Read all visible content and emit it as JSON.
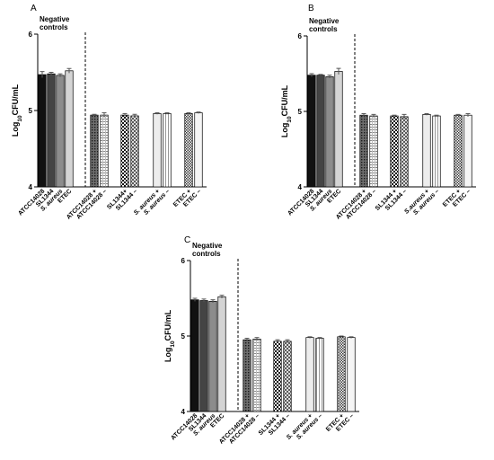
{
  "chart_data": [
    {
      "type": "bar",
      "panel": "A",
      "annotation": "Negative controls",
      "ylabel": "Log10CFU/mL",
      "ylim": [
        4,
        6
      ],
      "yticks": [
        "4",
        "5",
        "6"
      ],
      "grid": false,
      "categories": [
        "ATCC14028",
        "SL1344",
        "S. aureus",
        "ETEC",
        "ATCC14028 +",
        "ATCC14028 –",
        "SL1344+",
        "SL1344 –",
        "S. aureus +",
        "S. aureus –",
        "ETEC +",
        "ETEC –"
      ],
      "values": [
        5.47,
        5.48,
        5.46,
        5.52,
        4.94,
        4.94,
        4.94,
        4.93,
        4.96,
        4.96,
        4.96,
        4.97
      ],
      "errors": [
        0.04,
        0.02,
        0.02,
        0.03,
        0.01,
        0.03,
        0.02,
        0.02,
        0.01,
        0.01,
        0.01,
        0.01
      ]
    },
    {
      "type": "bar",
      "panel": "B",
      "annotation": "Negative controls",
      "ylabel": "Log10CFU/mL",
      "ylim": [
        4,
        6
      ],
      "yticks": [
        "4",
        "5",
        "6"
      ],
      "grid": false,
      "categories": [
        "ATCC14028",
        "SL1344",
        "S. aureus",
        "ETEC",
        "ATCC14028 +",
        "ATCC14028 –",
        "SL1344 +",
        "SL1344 –",
        "S.aureus +",
        "S. aureus –",
        "ETEC +",
        "ETEC –"
      ],
      "values": [
        5.48,
        5.48,
        5.46,
        5.53,
        4.95,
        4.94,
        4.94,
        4.93,
        4.96,
        4.94,
        4.95,
        4.95
      ],
      "errors": [
        0.02,
        0.01,
        0.02,
        0.04,
        0.02,
        0.02,
        0.01,
        0.03,
        0.01,
        0.01,
        0.01,
        0.02
      ]
    },
    {
      "type": "bar",
      "panel": "C",
      "annotation": "Negative controls",
      "ylabel": "Log10CFU/mL",
      "ylim": [
        4,
        6
      ],
      "yticks": [
        "4",
        "5",
        "6"
      ],
      "grid": false,
      "categories": [
        "ATCC14028",
        "SL1344",
        "S. aureus",
        "ETEC",
        "ATCC14028 +",
        "ATCC14028 –",
        "SL1344 +",
        "SL1344 –",
        "S. aureus +",
        "S. aureus –",
        "ETEC +",
        "ETEC –"
      ],
      "values": [
        5.48,
        5.47,
        5.46,
        5.52,
        4.95,
        4.96,
        4.93,
        4.93,
        4.98,
        4.97,
        4.99,
        4.98
      ],
      "errors": [
        0.02,
        0.02,
        0.02,
        0.02,
        0.02,
        0.02,
        0.02,
        0.02,
        0.01,
        0.01,
        0.01,
        0.01
      ]
    }
  ],
  "colors": {
    "black": "#000000",
    "dark_gray": "#404040",
    "mid_gray": "#8c8c8c",
    "light_gray": "#d9d9d9",
    "white": "#ffffff"
  }
}
